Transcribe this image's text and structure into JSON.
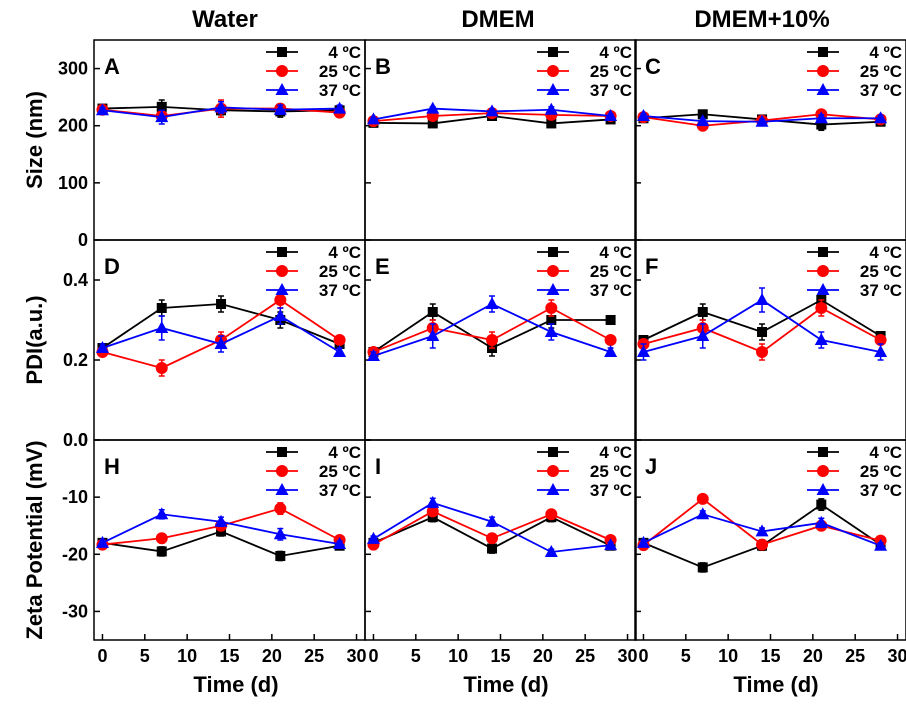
{
  "column_titles": [
    "Water",
    "DMEM",
    "DMEM+10%"
  ],
  "x_label": "Time (d)",
  "legend": [
    "4 ºC",
    "25 ºC",
    "37 ºC"
  ],
  "colors": {
    "s4": "#000000",
    "s25": "#ff0000",
    "s37": "#0000ff"
  },
  "markers": {
    "s4": "square",
    "s25": "circle",
    "s37": "triangle"
  },
  "chart_data": [
    {
      "type": "line",
      "panel": "A",
      "ylabel": "Size (nm)",
      "xlim": [
        -1,
        31
      ],
      "ylim": [
        0,
        350
      ],
      "xticks": [
        0,
        5,
        10,
        15,
        20,
        25,
        30
      ],
      "yticks": [
        0,
        100,
        200,
        300
      ],
      "x": [
        0,
        7,
        14,
        21,
        28
      ],
      "series": [
        {
          "name": "4 ºC",
          "values": [
            230,
            233,
            227,
            225,
            227
          ],
          "errors": [
            5,
            12,
            8,
            10,
            7
          ]
        },
        {
          "name": "25 ºC",
          "values": [
            228,
            217,
            230,
            230,
            223
          ],
          "errors": [
            5,
            6,
            15,
            8,
            8
          ]
        },
        {
          "name": "37 ºC",
          "values": [
            227,
            215,
            232,
            228,
            230
          ],
          "errors": [
            5,
            12,
            10,
            8,
            6
          ]
        }
      ]
    },
    {
      "type": "line",
      "panel": "B",
      "xlim": [
        -1,
        31
      ],
      "ylim": [
        0,
        350
      ],
      "xticks": [
        0,
        5,
        10,
        15,
        20,
        25,
        30
      ],
      "yticks": [
        0,
        100,
        200,
        300
      ],
      "x": [
        0,
        7,
        14,
        21,
        28
      ],
      "series": [
        {
          "name": "4 ºC",
          "values": [
            205,
            204,
            217,
            204,
            211
          ],
          "errors": [
            3,
            3,
            4,
            3,
            3
          ]
        },
        {
          "name": "25 ºC",
          "values": [
            208,
            217,
            222,
            219,
            217
          ],
          "errors": [
            3,
            3,
            4,
            5,
            3
          ]
        },
        {
          "name": "37 ºC",
          "values": [
            211,
            230,
            225,
            228,
            217
          ],
          "errors": [
            3,
            3,
            4,
            5,
            3
          ]
        }
      ]
    },
    {
      "type": "line",
      "panel": "C",
      "xlim": [
        -1,
        31
      ],
      "ylim": [
        0,
        350
      ],
      "xticks": [
        0,
        5,
        10,
        15,
        20,
        25,
        30
      ],
      "yticks": [
        0,
        100,
        200,
        300
      ],
      "x": [
        0,
        7,
        14,
        21,
        28
      ],
      "series": [
        {
          "name": "4 ºC",
          "values": [
            213,
            220,
            211,
            202,
            207
          ],
          "errors": [
            4,
            4,
            4,
            10,
            5
          ]
        },
        {
          "name": "25 ºC",
          "values": [
            215,
            200,
            209,
            220,
            211
          ],
          "errors": [
            4,
            6,
            4,
            6,
            5
          ]
        },
        {
          "name": "37 ºC",
          "values": [
            217,
            208,
            207,
            213,
            213
          ],
          "errors": [
            4,
            4,
            4,
            6,
            5
          ]
        }
      ]
    },
    {
      "type": "line",
      "panel": "D",
      "ylabel": "PDI(a.u.)",
      "xlim": [
        -1,
        31
      ],
      "ylim": [
        0,
        0.5
      ],
      "xticks": [
        0,
        5,
        10,
        15,
        20,
        25,
        30
      ],
      "yticks": [
        0.0,
        0.2,
        0.4
      ],
      "x": [
        0,
        7,
        14,
        21,
        28
      ],
      "series": [
        {
          "name": "4 ºC",
          "values": [
            0.23,
            0.33,
            0.34,
            0.3,
            0.24
          ],
          "errors": [
            0.01,
            0.02,
            0.02,
            0.02,
            0.01
          ]
        },
        {
          "name": "25 ºC",
          "values": [
            0.22,
            0.18,
            0.25,
            0.35,
            0.25
          ],
          "errors": [
            0.01,
            0.02,
            0.02,
            0.02,
            0.01
          ]
        },
        {
          "name": "37 ºC",
          "values": [
            0.23,
            0.28,
            0.24,
            0.31,
            0.22
          ],
          "errors": [
            0.01,
            0.03,
            0.02,
            0.02,
            0.01
          ]
        }
      ]
    },
    {
      "type": "line",
      "panel": "E",
      "xlim": [
        -1,
        31
      ],
      "ylim": [
        0,
        0.5
      ],
      "xticks": [
        0,
        5,
        10,
        15,
        20,
        25,
        30
      ],
      "yticks": [
        0.0,
        0.2,
        0.4
      ],
      "x": [
        0,
        7,
        14,
        21,
        28
      ],
      "series": [
        {
          "name": "4 ºC",
          "values": [
            0.22,
            0.32,
            0.23,
            0.3,
            0.3
          ],
          "errors": [
            0.01,
            0.02,
            0.02,
            0.02,
            0.0
          ]
        },
        {
          "name": "25 ºC",
          "values": [
            0.22,
            0.28,
            0.25,
            0.33,
            0.25
          ],
          "errors": [
            0.01,
            0.02,
            0.02,
            0.02,
            0.01
          ]
        },
        {
          "name": "37 ºC",
          "values": [
            0.21,
            0.26,
            0.34,
            0.27,
            0.22
          ],
          "errors": [
            0.01,
            0.03,
            0.02,
            0.02,
            0.01
          ]
        }
      ]
    },
    {
      "type": "line",
      "panel": "F",
      "xlim": [
        -1,
        31
      ],
      "ylim": [
        0,
        0.5
      ],
      "xticks": [
        0,
        5,
        10,
        15,
        20,
        25,
        30
      ],
      "yticks": [
        0.0,
        0.2,
        0.4
      ],
      "x": [
        0,
        7,
        14,
        21,
        28
      ],
      "series": [
        {
          "name": "4 ºC",
          "values": [
            0.25,
            0.32,
            0.27,
            0.35,
            0.26
          ],
          "errors": [
            0.01,
            0.02,
            0.02,
            0.02,
            0.01
          ]
        },
        {
          "name": "25 ºC",
          "values": [
            0.24,
            0.28,
            0.22,
            0.33,
            0.25
          ],
          "errors": [
            0.01,
            0.02,
            0.02,
            0.02,
            0.01
          ]
        },
        {
          "name": "37 ºC",
          "values": [
            0.22,
            0.26,
            0.35,
            0.25,
            0.22
          ],
          "errors": [
            0.02,
            0.03,
            0.03,
            0.02,
            0.02
          ]
        }
      ]
    },
    {
      "type": "line",
      "panel": "H",
      "ylabel": "Zeta Potential (mV)",
      "xlim": [
        -1,
        31
      ],
      "ylim": [
        -35,
        0
      ],
      "xticks": [
        0,
        5,
        10,
        15,
        20,
        25,
        30
      ],
      "yticks": [
        -30,
        -20,
        -10,
        0
      ],
      "x": [
        0,
        7,
        14,
        21,
        28
      ],
      "series": [
        {
          "name": "4 ºC",
          "values": [
            -18,
            -19.5,
            -16,
            -20.3,
            -18.5
          ],
          "errors": [
            0.5,
            0.8,
            0.8,
            0.8,
            0.5
          ]
        },
        {
          "name": "25 ºC",
          "values": [
            -18.3,
            -17.2,
            -15,
            -12,
            -17.5
          ],
          "errors": [
            0.5,
            0.8,
            0.8,
            1.0,
            0.5
          ]
        },
        {
          "name": "37 ºC",
          "values": [
            -18,
            -13,
            -14.3,
            -16.5,
            -18.2
          ],
          "errors": [
            0.5,
            0.8,
            0.8,
            1.0,
            0.5
          ]
        }
      ]
    },
    {
      "type": "line",
      "panel": "I",
      "xlim": [
        -1,
        31
      ],
      "ylim": [
        -35,
        0
      ],
      "xticks": [
        0,
        5,
        10,
        15,
        20,
        25,
        30
      ],
      "yticks": [
        -30,
        -20,
        -10,
        0
      ],
      "x": [
        0,
        7,
        14,
        21,
        28
      ],
      "series": [
        {
          "name": "4 ºC",
          "values": [
            -18,
            -13.5,
            -19,
            -13.5,
            -18.5
          ],
          "errors": [
            0.5,
            0.8,
            0.8,
            0.8,
            0.5
          ]
        },
        {
          "name": "25 ºC",
          "values": [
            -18.3,
            -12.5,
            -17.2,
            -13,
            -17.5
          ],
          "errors": [
            0.5,
            0.8,
            0.8,
            0.8,
            0.5
          ]
        },
        {
          "name": "37 ºC",
          "values": [
            -17.3,
            -11,
            -14.3,
            -19.6,
            -18.4
          ],
          "errors": [
            0.5,
            0.8,
            0.8,
            0.5,
            0.5
          ]
        }
      ]
    },
    {
      "type": "line",
      "panel": "J",
      "xlim": [
        -1,
        31
      ],
      "ylim": [
        -35,
        0
      ],
      "xticks": [
        0,
        5,
        10,
        15,
        20,
        25,
        30
      ],
      "yticks": [
        -30,
        -20,
        -10,
        0
      ],
      "x": [
        0,
        7,
        14,
        21,
        28
      ],
      "series": [
        {
          "name": "4 ºC",
          "values": [
            -18,
            -22.3,
            -18.5,
            -11.3,
            -18.3
          ],
          "errors": [
            0.5,
            0.8,
            0.8,
            1.0,
            0.5
          ]
        },
        {
          "name": "25 ºC",
          "values": [
            -18.4,
            -10.3,
            -18.3,
            -15,
            -17.6
          ],
          "errors": [
            0.5,
            0.5,
            0.8,
            0.8,
            0.5
          ]
        },
        {
          "name": "37 ºC",
          "values": [
            -18,
            -13,
            -16,
            -14.5,
            -18.5
          ],
          "errors": [
            0.5,
            0.6,
            0.6,
            0.8,
            0.5
          ]
        }
      ]
    }
  ]
}
